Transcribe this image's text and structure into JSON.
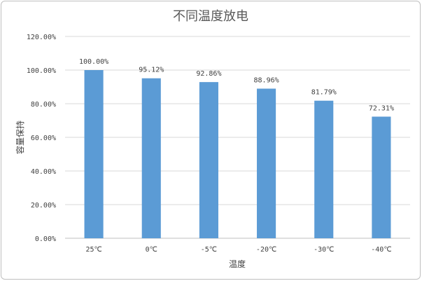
{
  "chart_data": {
    "type": "bar",
    "title": "不同温度放电",
    "xlabel": "温度",
    "ylabel": "容量保持",
    "categories": [
      "25℃",
      "0℃",
      "-5℃",
      "-20℃",
      "-30℃",
      "-40℃"
    ],
    "values": [
      100.0,
      95.12,
      92.86,
      88.96,
      81.79,
      72.31
    ],
    "data_labels": [
      "100.00%",
      "95.12%",
      "92.86%",
      "88.96%",
      "81.79%",
      "72.31%"
    ],
    "ylim": [
      0,
      120
    ],
    "yticks": [
      0,
      20,
      40,
      60,
      80,
      100,
      120
    ],
    "ytick_labels": [
      "0.00%",
      "20.00%",
      "40.00%",
      "60.00%",
      "80.00%",
      "100.00%",
      "120.00%"
    ],
    "grid": true,
    "legend": "none",
    "bar_color": "#5b9bd5"
  }
}
